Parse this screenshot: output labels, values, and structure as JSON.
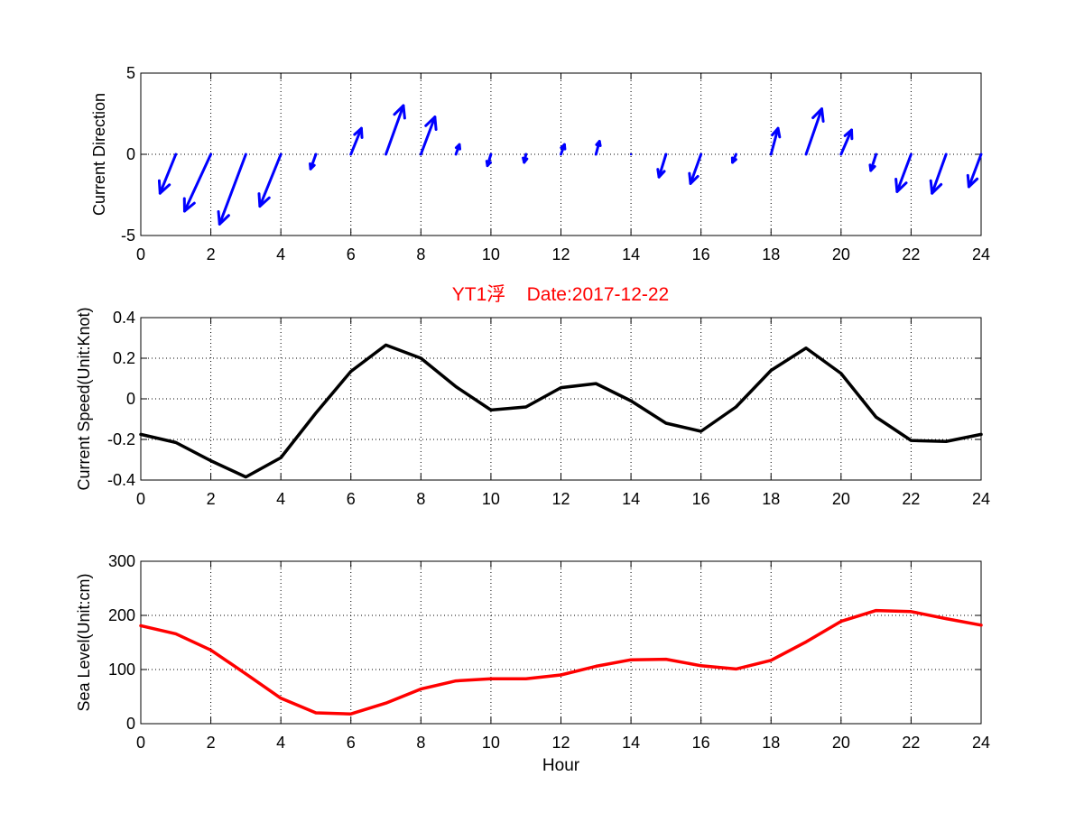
{
  "figure": {
    "title": "YT1浮    Date:2017-12-22",
    "title_color": "#ff0000"
  },
  "chart_data": [
    {
      "type": "quiver",
      "ylabel": "Current Direction",
      "xlim": [
        0,
        24
      ],
      "ylim": [
        -5,
        5
      ],
      "xticks": [
        0,
        2,
        4,
        6,
        8,
        10,
        12,
        14,
        16,
        18,
        20,
        22,
        24
      ],
      "yticks": [
        -5,
        0,
        5
      ],
      "grid": true,
      "color": "#0000ff",
      "x": [
        1,
        2,
        3,
        4,
        5,
        6,
        7,
        8,
        9,
        10,
        11,
        12,
        13,
        14,
        15,
        16,
        17,
        18,
        19,
        20,
        21,
        22,
        23,
        24
      ],
      "u": [
        -0.45,
        -0.75,
        -0.75,
        -0.6,
        -0.15,
        0.3,
        0.5,
        0.4,
        0.1,
        -0.1,
        -0.05,
        0.1,
        0.1,
        0,
        -0.2,
        -0.3,
        -0.1,
        0.2,
        0.45,
        0.3,
        -0.15,
        -0.4,
        -0.4,
        -0.35
      ],
      "v": [
        -2.4,
        -3.5,
        -4.3,
        -3.2,
        -0.9,
        1.6,
        3.0,
        2.3,
        0.6,
        -0.7,
        -0.5,
        0.6,
        0.8,
        0,
        -1.4,
        -1.8,
        -0.5,
        1.6,
        2.8,
        1.5,
        -1.0,
        -2.3,
        -2.4,
        -2.0
      ]
    },
    {
      "type": "line",
      "ylabel": "Current Speed(Unit:Knot)",
      "xlim": [
        0,
        24
      ],
      "ylim": [
        -0.4,
        0.4
      ],
      "xticks": [
        0,
        2,
        4,
        6,
        8,
        10,
        12,
        14,
        16,
        18,
        20,
        22,
        24
      ],
      "yticks": [
        -0.4,
        -0.2,
        0,
        0.2,
        0.4
      ],
      "grid": true,
      "color": "#000000",
      "x": [
        0,
        1,
        2,
        3,
        4,
        5,
        6,
        7,
        8,
        9,
        10,
        11,
        12,
        13,
        14,
        15,
        16,
        17,
        18,
        19,
        20,
        21,
        22,
        23,
        24
      ],
      "y": [
        -0.175,
        -0.215,
        -0.305,
        -0.385,
        -0.29,
        -0.07,
        0.135,
        0.265,
        0.2,
        0.06,
        -0.055,
        -0.04,
        0.055,
        0.075,
        -0.01,
        -0.12,
        -0.16,
        -0.04,
        0.14,
        0.25,
        0.125,
        -0.09,
        -0.205,
        -0.21,
        -0.175
      ]
    },
    {
      "type": "line",
      "ylabel": "Sea Level(Unit:cm)",
      "xlabel": "Hour",
      "xlim": [
        0,
        24
      ],
      "ylim": [
        0,
        300
      ],
      "xticks": [
        0,
        2,
        4,
        6,
        8,
        10,
        12,
        14,
        16,
        18,
        20,
        22,
        24
      ],
      "yticks": [
        0,
        100,
        200,
        300
      ],
      "grid": true,
      "color": "#ff0000",
      "x": [
        0,
        1,
        2,
        3,
        4,
        5,
        6,
        7,
        8,
        9,
        10,
        11,
        12,
        13,
        14,
        15,
        16,
        17,
        18,
        19,
        20,
        21,
        22,
        23,
        24
      ],
      "y": [
        181,
        166,
        136,
        92,
        47,
        20,
        18,
        38,
        64,
        79,
        83,
        83,
        90,
        106,
        118,
        119,
        107,
        101,
        117,
        151,
        189,
        209,
        207,
        194,
        182
      ]
    }
  ]
}
